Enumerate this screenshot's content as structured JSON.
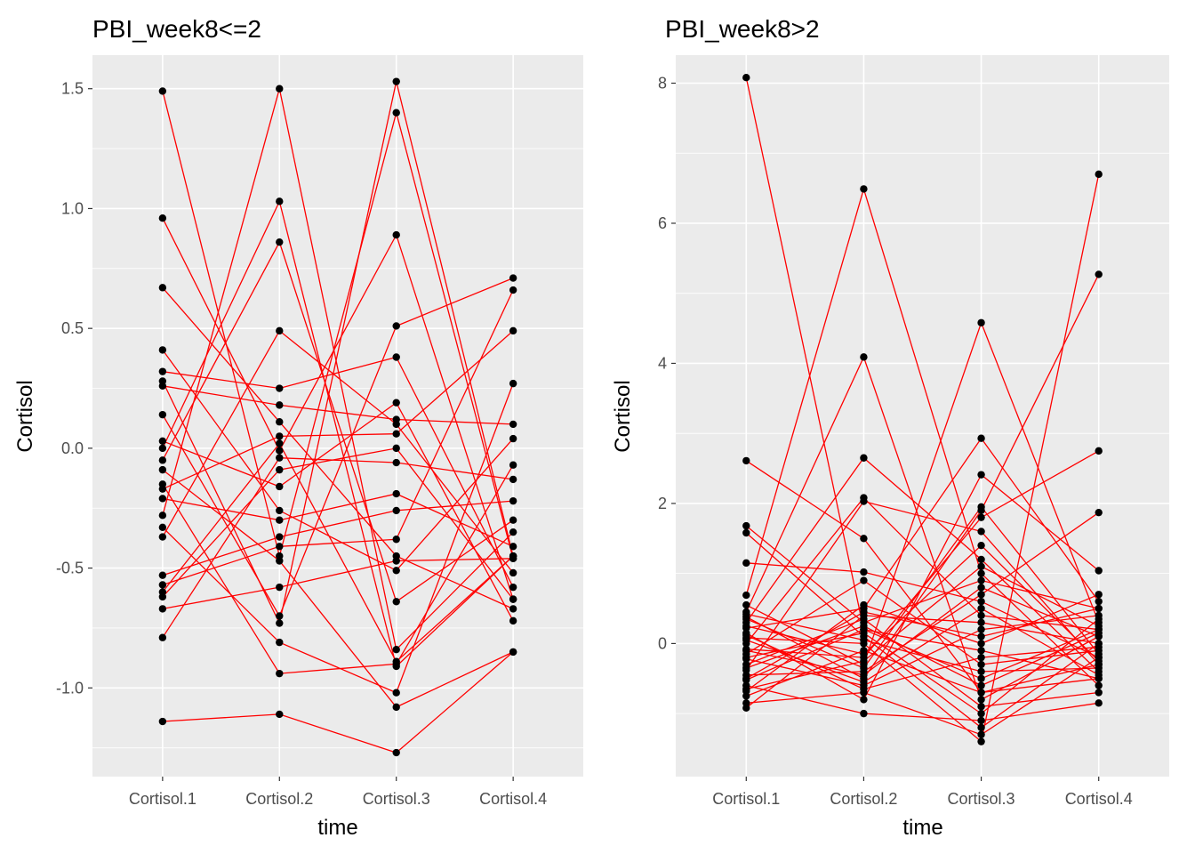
{
  "chart_data": [
    {
      "type": "line",
      "title": "PBI_week8<=2",
      "xlabel": "time",
      "ylabel": "Cortisol",
      "categories": [
        "Cortisol.1",
        "Cortisol.2",
        "Cortisol.3",
        "Cortisol.4"
      ],
      "ylim": [
        -1.37,
        1.64
      ],
      "yticks": [
        -1.0,
        -0.5,
        0.0,
        0.5,
        1.0,
        1.5
      ],
      "ytick_labels": [
        "-1.0",
        "-0.5",
        "0.0",
        "0.5",
        "1.0",
        "1.5"
      ],
      "grid": true,
      "line_color": "#ff0000",
      "point_color": "#000000",
      "panel_color": "#ebebeb",
      "series": [
        {
          "values": [
            1.49,
            -0.45,
            1.4,
            -0.46
          ]
        },
        {
          "values": [
            0.96,
            -0.01,
            0.89,
            -0.63
          ]
        },
        {
          "values": [
            0.67,
            0.11,
            -0.45,
            -0.67
          ]
        },
        {
          "values": [
            0.41,
            -0.26,
            -0.51,
            0.04
          ]
        },
        {
          "values": [
            0.32,
            0.25,
            0.38,
            -0.58
          ]
        },
        {
          "values": [
            0.28,
            -0.73,
            1.53,
            -0.45
          ]
        },
        {
          "values": [
            0.26,
            0.18,
            0.12,
            0.1
          ]
        },
        {
          "values": [
            0.14,
            -0.7,
            0.51,
            0.71
          ]
        },
        {
          "values": [
            0.03,
            -0.16,
            0.19,
            -0.72
          ]
        },
        {
          "values": [
            0.0,
            1.03,
            -0.91,
            -0.45
          ]
        },
        {
          "values": [
            -0.05,
            0.86,
            -0.64,
            -0.3
          ]
        },
        {
          "values": [
            -0.09,
            -0.47,
            -1.08,
            -0.85
          ]
        },
        {
          "values": [
            -0.17,
            0.05,
            0.06,
            0.49
          ]
        },
        {
          "values": [
            -0.21,
            -0.3,
            -0.19,
            -0.41
          ]
        },
        {
          "values": [
            -0.28,
            1.5,
            -0.84,
            -0.35
          ]
        },
        {
          "values": [
            -0.33,
            -0.81,
            -1.02,
            0.27
          ]
        },
        {
          "values": [
            -0.37,
            0.49,
            0.1,
            -0.52
          ]
        },
        {
          "values": [
            -0.53,
            -0.37,
            -0.26,
            -0.22
          ]
        },
        {
          "values": [
            -0.57,
            -0.41,
            -0.38,
            0.66
          ]
        },
        {
          "values": [
            -0.6,
            0.02,
            -0.89,
            -0.45
          ]
        },
        {
          "values": [
            -0.62,
            -0.09,
            0.0,
            -0.63
          ]
        },
        {
          "values": [
            -0.67,
            -0.58,
            -0.47,
            -0.46
          ]
        },
        {
          "values": [
            -0.79,
            -0.04,
            -0.06,
            -0.13
          ]
        },
        {
          "values": [
            -1.14,
            -1.11,
            -1.27,
            -0.85
          ]
        },
        {
          "values": [
            -0.15,
            -0.94,
            -0.9,
            -0.07
          ]
        }
      ]
    },
    {
      "type": "line",
      "title": "PBI_week8>2",
      "xlabel": "time",
      "ylabel": "Cortisol",
      "categories": [
        "Cortisol.1",
        "Cortisol.2",
        "Cortisol.3",
        "Cortisol.4"
      ],
      "ylim": [
        -1.9,
        8.4
      ],
      "yticks": [
        0,
        2,
        4,
        6,
        8
      ],
      "ytick_labels": [
        "0",
        "2",
        "4",
        "6",
        "8"
      ],
      "grid": true,
      "line_color": "#ff0000",
      "point_color": "#000000",
      "panel_color": "#ebebeb",
      "series": [
        {
          "values": [
            8.08,
            0.2,
            -0.1,
            -0.5
          ]
        },
        {
          "values": [
            2.61,
            1.5,
            -0.7,
            -0.3
          ]
        },
        {
          "values": [
            1.68,
            0.3,
            0.9,
            0.5
          ]
        },
        {
          "values": [
            1.58,
            0.1,
            -1.2,
            0.0
          ]
        },
        {
          "values": [
            1.15,
            1.02,
            0.6,
            -0.2
          ]
        },
        {
          "values": [
            0.69,
            6.49,
            1.0,
            -0.6
          ]
        },
        {
          "values": [
            0.55,
            -0.3,
            4.58,
            0.3
          ]
        },
        {
          "values": [
            0.45,
            4.09,
            -0.8,
            0.1
          ]
        },
        {
          "values": [
            0.38,
            -0.5,
            1.9,
            5.27
          ]
        },
        {
          "values": [
            0.3,
            2.65,
            1.2,
            -0.4
          ]
        },
        {
          "values": [
            0.22,
            0.5,
            2.93,
            0.6
          ]
        },
        {
          "values": [
            0.15,
            -0.8,
            2.41,
            1.04
          ]
        },
        {
          "values": [
            0.08,
            0.0,
            -1.4,
            6.7
          ]
        },
        {
          "values": [
            0.0,
            2.08,
            0.4,
            0.2
          ]
        },
        {
          "values": [
            -0.08,
            -0.2,
            1.8,
            2.75
          ]
        },
        {
          "values": [
            -0.15,
            0.9,
            -0.3,
            -0.1
          ]
        },
        {
          "values": [
            -0.22,
            -0.6,
            0.2,
            0.4
          ]
        },
        {
          "values": [
            -0.3,
            0.35,
            -0.9,
            -0.7
          ]
        },
        {
          "values": [
            -0.38,
            2.03,
            1.6,
            -0.3
          ]
        },
        {
          "values": [
            -0.45,
            -0.4,
            0.7,
            1.87
          ]
        },
        {
          "values": [
            -0.52,
            0.2,
            -0.5,
            0.2
          ]
        },
        {
          "values": [
            -0.6,
            -1.0,
            -1.1,
            -0.85
          ]
        },
        {
          "values": [
            -0.68,
            0.55,
            0.0,
            0.7
          ]
        },
        {
          "values": [
            -0.75,
            -0.1,
            -0.7,
            -0.5
          ]
        },
        {
          "values": [
            -0.85,
            -0.7,
            -1.3,
            -0.2
          ]
        },
        {
          "values": [
            -0.92,
            0.4,
            0.3,
            0.0
          ]
        },
        {
          "values": [
            0.35,
            -0.35,
            1.95,
            -0.15
          ]
        },
        {
          "values": [
            -0.2,
            0.15,
            -1.0,
            0.35
          ]
        },
        {
          "values": [
            0.05,
            -0.55,
            0.5,
            -0.45
          ]
        },
        {
          "values": [
            -0.35,
            0.25,
            -0.6,
            0.15
          ]
        },
        {
          "values": [
            0.25,
            -0.15,
            1.4,
            -0.25
          ]
        },
        {
          "values": [
            -0.5,
            0.45,
            0.1,
            0.5
          ]
        },
        {
          "values": [
            0.12,
            -0.65,
            -0.2,
            -0.05
          ]
        },
        {
          "values": [
            -0.65,
            -0.25,
            1.1,
            0.25
          ]
        },
        {
          "values": [
            0.42,
            0.05,
            -0.4,
            -0.35
          ]
        },
        {
          "values": [
            -0.1,
            -0.45,
            0.8,
            0.1
          ]
        }
      ]
    }
  ]
}
